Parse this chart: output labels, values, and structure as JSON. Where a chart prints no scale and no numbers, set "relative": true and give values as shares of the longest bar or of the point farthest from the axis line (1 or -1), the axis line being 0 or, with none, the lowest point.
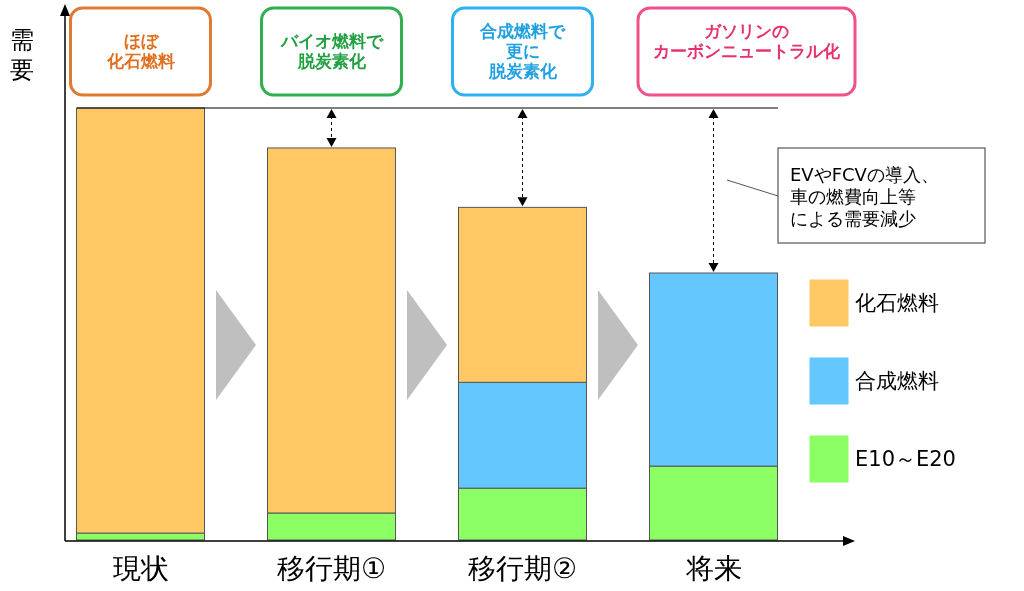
{
  "chart_data": {
    "type": "bar",
    "stacked": true,
    "relative": true,
    "ylabel": "需要",
    "categories": [
      "現状",
      "移行期①",
      "移行期②",
      "将来"
    ],
    "series": [
      {
        "name": "E10～E20",
        "color": "#8cff64",
        "values": [
          0.016,
          0.0625,
          0.12,
          0.171
        ]
      },
      {
        "name": "合成燃料",
        "color": "#64c8ff",
        "values": [
          0,
          0,
          0.245,
          0.447
        ]
      },
      {
        "name": "化石燃料",
        "color": "#ffc864",
        "values": [
          0.984,
          0.845,
          0.405,
          0
        ]
      }
    ],
    "ref_lines": [
      {
        "axis": "y",
        "value": 1,
        "color": "#000000"
      }
    ],
    "legend": "right",
    "annotations": [
      "ほぼ",
      "化石燃料",
      "バイオ燃料で",
      "脱炭素化",
      "合成燃料で",
      "更に",
      "脱炭素化",
      "ガソリンの",
      "カーボンニュートラル化",
      "EVやFCVの導入、",
      "車の燃費向上等",
      "による需要減少"
    ]
  }
}
